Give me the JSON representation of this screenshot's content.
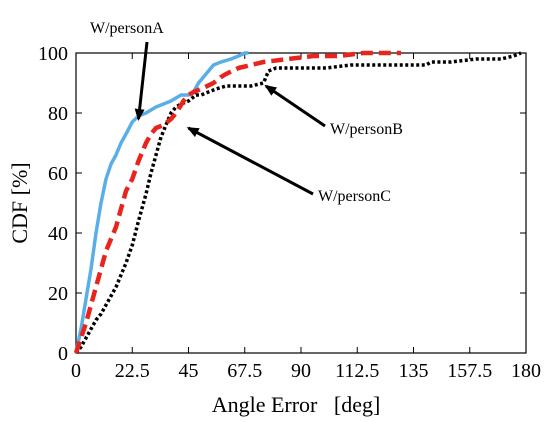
{
  "chart_data": {
    "type": "line",
    "xlabel": "Angle Error   [deg]",
    "ylabel": "CDF [%]",
    "xlim": [
      0,
      180
    ],
    "ylim": [
      0,
      100
    ],
    "x_ticks": [
      0,
      22.5,
      45,
      67.5,
      90,
      112.5,
      135,
      157.5,
      180
    ],
    "x_tick_labels": [
      "0",
      "22.5",
      "45",
      "67.5",
      "90",
      "112.5",
      "135",
      "157.5",
      "180"
    ],
    "y_ticks": [
      0,
      20,
      40,
      60,
      80,
      100
    ],
    "y_tick_labels": [
      "0",
      "20",
      "40",
      "60",
      "80",
      "100"
    ],
    "grid": false,
    "series": [
      {
        "name": "W/personA",
        "color": "#5aaee8",
        "style": "solid",
        "points": [
          [
            0,
            0
          ],
          [
            2,
            8
          ],
          [
            4,
            18
          ],
          [
            6,
            28
          ],
          [
            8,
            40
          ],
          [
            10,
            50
          ],
          [
            12,
            58
          ],
          [
            14,
            63
          ],
          [
            16,
            66
          ],
          [
            18,
            70
          ],
          [
            20,
            73
          ],
          [
            22.5,
            77
          ],
          [
            25,
            79
          ],
          [
            28,
            80
          ],
          [
            32,
            82
          ],
          [
            35,
            83
          ],
          [
            38,
            84
          ],
          [
            40,
            85
          ],
          [
            42,
            86
          ],
          [
            45,
            86
          ],
          [
            47,
            87
          ],
          [
            49,
            90
          ],
          [
            51,
            92
          ],
          [
            53,
            94
          ],
          [
            55,
            96
          ],
          [
            58,
            97
          ],
          [
            62,
            98
          ],
          [
            65,
            99
          ],
          [
            67.5,
            100
          ],
          [
            69,
            100
          ]
        ]
      },
      {
        "name": "W/personB",
        "color": "#000000",
        "style": "dotted",
        "points": [
          [
            0,
            0
          ],
          [
            2,
            2
          ],
          [
            4,
            5
          ],
          [
            6,
            8
          ],
          [
            8,
            11
          ],
          [
            10,
            13
          ],
          [
            12,
            16
          ],
          [
            14,
            19
          ],
          [
            16,
            22
          ],
          [
            18,
            26
          ],
          [
            20,
            30
          ],
          [
            22.5,
            36
          ],
          [
            25,
            44
          ],
          [
            28,
            53
          ],
          [
            30,
            60
          ],
          [
            32,
            66
          ],
          [
            34,
            72
          ],
          [
            36,
            76
          ],
          [
            38,
            80
          ],
          [
            40,
            82
          ],
          [
            42,
            83
          ],
          [
            45,
            84
          ],
          [
            48,
            86
          ],
          [
            50,
            86
          ],
          [
            53,
            87
          ],
          [
            56,
            88
          ],
          [
            60,
            89
          ],
          [
            65,
            89
          ],
          [
            70,
            89
          ],
          [
            75,
            90
          ],
          [
            77,
            94
          ],
          [
            80,
            95
          ],
          [
            90,
            95
          ],
          [
            100,
            95
          ],
          [
            110,
            96
          ],
          [
            120,
            96
          ],
          [
            135,
            96
          ],
          [
            140,
            96
          ],
          [
            142,
            97
          ],
          [
            150,
            97
          ],
          [
            160,
            98
          ],
          [
            170,
            98
          ],
          [
            175,
            99
          ],
          [
            178,
            100
          ]
        ]
      },
      {
        "name": "W/personC",
        "color": "#e8241c",
        "style": "dashed",
        "points": [
          [
            0,
            0
          ],
          [
            2,
            5
          ],
          [
            4,
            10
          ],
          [
            6,
            16
          ],
          [
            8,
            22
          ],
          [
            10,
            28
          ],
          [
            12,
            34
          ],
          [
            14,
            38
          ],
          [
            16,
            42
          ],
          [
            18,
            48
          ],
          [
            20,
            54
          ],
          [
            22.5,
            58
          ],
          [
            25,
            64
          ],
          [
            28,
            70
          ],
          [
            30,
            73
          ],
          [
            32,
            75
          ],
          [
            35,
            76
          ],
          [
            38,
            78
          ],
          [
            40,
            80
          ],
          [
            43,
            84
          ],
          [
            45,
            86
          ],
          [
            47,
            87
          ],
          [
            50,
            88
          ],
          [
            55,
            90
          ],
          [
            58,
            92
          ],
          [
            60,
            93
          ],
          [
            65,
            95
          ],
          [
            70,
            96
          ],
          [
            75,
            97
          ],
          [
            85,
            98
          ],
          [
            95,
            99
          ],
          [
            105,
            99
          ],
          [
            115,
            100
          ],
          [
            130,
            100
          ]
        ]
      }
    ],
    "annotations": [
      {
        "text": "W/personA",
        "target": "W/personA",
        "point": [
          25,
          78
        ]
      },
      {
        "text": "W/personB",
        "target": "W/personB",
        "point": [
          76,
          89
        ]
      },
      {
        "text": "W/personC",
        "target": "W/personC",
        "point": [
          45,
          75
        ]
      }
    ]
  }
}
